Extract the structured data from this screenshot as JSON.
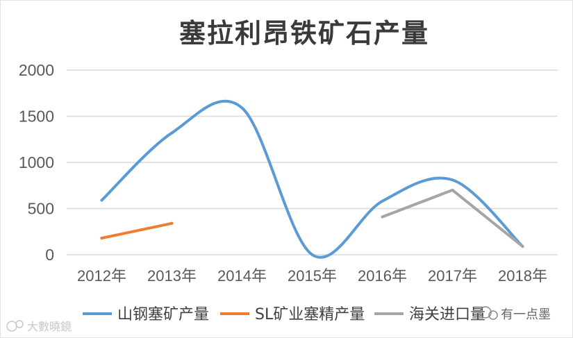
{
  "chart_data": {
    "type": "line",
    "title": "塞拉利昂铁矿石产量",
    "categories": [
      "2012年",
      "2013年",
      "2014年",
      "2015年",
      "2016年",
      "2017年",
      "2018年"
    ],
    "ylim": [
      0,
      2000
    ],
    "yticks": [
      0,
      500,
      1000,
      1500,
      2000
    ],
    "grid": true,
    "legend_position": "bottom",
    "series": [
      {
        "name": "山钢塞矿产量",
        "color": "#5b9bd5",
        "smooth": true,
        "values": [
          590,
          1320,
          1590,
          0,
          580,
          810,
          90
        ]
      },
      {
        "name": "SL矿业塞精产量",
        "color": "#ed7d31",
        "smooth": false,
        "values": [
          180,
          340,
          null,
          null,
          null,
          null,
          null
        ]
      },
      {
        "name": "海关进口量",
        "color": "#a5a5a5",
        "smooth": false,
        "values": [
          null,
          null,
          null,
          null,
          410,
          700,
          90
        ]
      }
    ]
  },
  "watermarks": {
    "left_text": "大數曉鏡",
    "right_text": "有一点墨"
  }
}
